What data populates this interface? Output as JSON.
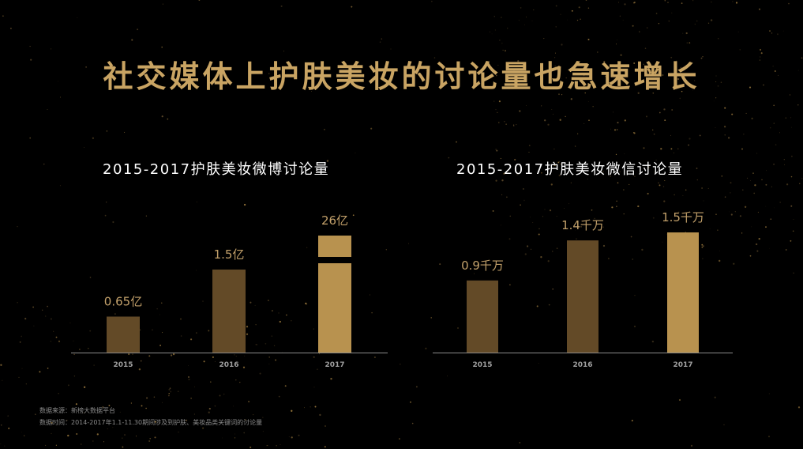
{
  "title": "社交媒体上护肤美妆的讨论量也急速增长",
  "colors": {
    "title_gold": "#c9a463",
    "bar_dark": "#634a27",
    "bar_light": "#b8924f",
    "label_gold": "#c2a06a",
    "axis": "#8a8a8a",
    "tick_text": "#a0a0a0"
  },
  "chart_data": [
    {
      "type": "bar",
      "title": "2015-2017护肤美妆微博讨论量",
      "categories": [
        "2015",
        "2016",
        "2017"
      ],
      "values": [
        0.65,
        1.5,
        26
      ],
      "value_labels": [
        "0.65亿",
        "1.5亿",
        "26亿"
      ],
      "unit": "亿",
      "axis_break": true,
      "highlight_index": 2,
      "grid": false
    },
    {
      "type": "bar",
      "title": "2015-2017护肤美妆微信讨论量",
      "categories": [
        "2015",
        "2016",
        "2017"
      ],
      "values": [
        0.9,
        1.4,
        1.5
      ],
      "value_labels": [
        "0.9千万",
        "1.4千万",
        "1.5千万"
      ],
      "unit": "千万",
      "axis_break": false,
      "highlight_index": 2,
      "grid": false
    }
  ],
  "footnotes": [
    "数据来源：新榜大数据平台",
    "数据时间：2014-2017年1.1-11.30期间涉及到护肤、美妆品类关键词的讨论量"
  ]
}
